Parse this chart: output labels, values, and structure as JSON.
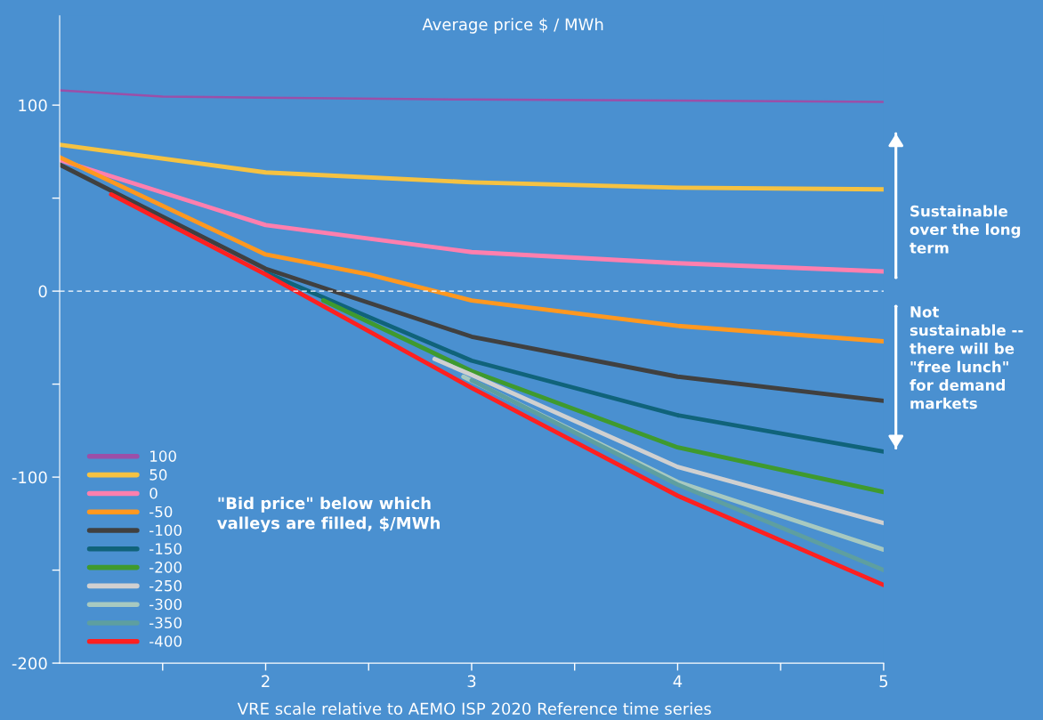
{
  "chart_data": {
    "type": "line",
    "ylabel": "Average price $ / MWh",
    "xlabel": "VRE scale relative to AEMO ISP 2020 Reference time series",
    "xlim": [
      1,
      5
    ],
    "xticks": [
      {
        "value": 1.5,
        "label": null
      },
      2,
      {
        "value": 2.5,
        "label": null
      },
      3,
      {
        "value": 3.5,
        "label": null
      },
      4,
      {
        "value": 4.5,
        "label": null
      },
      5
    ],
    "ylim": [
      -200,
      148
    ],
    "yticks": [
      -200,
      {
        "value": -150,
        "label": null
      },
      -100,
      {
        "value": -50,
        "label": null
      },
      0,
      {
        "value": 50,
        "label": null
      },
      100
    ],
    "grid": false,
    "legend": "bottom left",
    "marker": "none",
    "line_style": "solid",
    "ref_lines": [
      {
        "axis": "y",
        "value": 0,
        "label": null,
        "color": "#ffffff",
        "line_style": "dashed"
      }
    ],
    "annotations": [
      "Sustainable over the long term",
      "Not sustainable -- there will be \"free lunch\" for demand markets",
      "\"Bid price\" below which valleys are filled, $/MWh"
    ],
    "series": [
      {
        "name": "100",
        "color": "#9b4fa8",
        "x": [
          1,
          1.5,
          2,
          3,
          4,
          5
        ],
        "values": [
          108,
          104.6,
          104,
          103,
          102.5,
          101.7
        ]
      },
      {
        "name": "50",
        "color": "#f5c242",
        "x": [
          1,
          2,
          3,
          4,
          5
        ],
        "values": [
          78.7,
          63.8,
          58.5,
          55.6,
          54.7
        ]
      },
      {
        "name": "0",
        "color": "#ff7fae",
        "x": [
          1,
          2,
          3,
          4,
          5
        ],
        "values": [
          70.5,
          35.5,
          21,
          15,
          10.6
        ]
      },
      {
        "name": "-50",
        "color": "#ff9820",
        "x": [
          1,
          2,
          2.5,
          3,
          4,
          5
        ],
        "values": [
          72,
          19.7,
          9,
          -5,
          -18.7,
          -27
        ]
      },
      {
        "name": "-100",
        "color": "#404040",
        "x": [
          1,
          2,
          3,
          4,
          5
        ],
        "values": [
          68,
          12,
          -24.5,
          -46,
          -59
        ]
      },
      {
        "name": "-150",
        "color": "#10637a",
        "x": [
          2,
          2.45,
          3,
          4,
          5
        ],
        "values": [
          10,
          -11.5,
          -37.4,
          -66.7,
          -86.3
        ]
      },
      {
        "name": "-200",
        "color": "#3f9a2e",
        "x": [
          2.28,
          3,
          4,
          5
        ],
        "values": [
          -5,
          -43,
          -84,
          -108
        ]
      },
      {
        "name": "-250",
        "color": "#d0d0d0",
        "x": [
          2.82,
          3,
          4,
          5
        ],
        "values": [
          -36.5,
          -45,
          -94.5,
          -124.7
        ]
      },
      {
        "name": "-300",
        "color": "#a7c9c0",
        "x": [
          2.96,
          4,
          5
        ],
        "values": [
          -46,
          -102.6,
          -139
        ]
      },
      {
        "name": "-350",
        "color": "#5e9fa0",
        "x": [
          3,
          4,
          5
        ],
        "values": [
          -48,
          -104,
          -150
        ]
      },
      {
        "name": "-400",
        "color": "#ff2020",
        "x": [
          1.25,
          2,
          3,
          4,
          5
        ],
        "values": [
          52,
          9,
          -52,
          -110,
          -158
        ]
      }
    ]
  }
}
